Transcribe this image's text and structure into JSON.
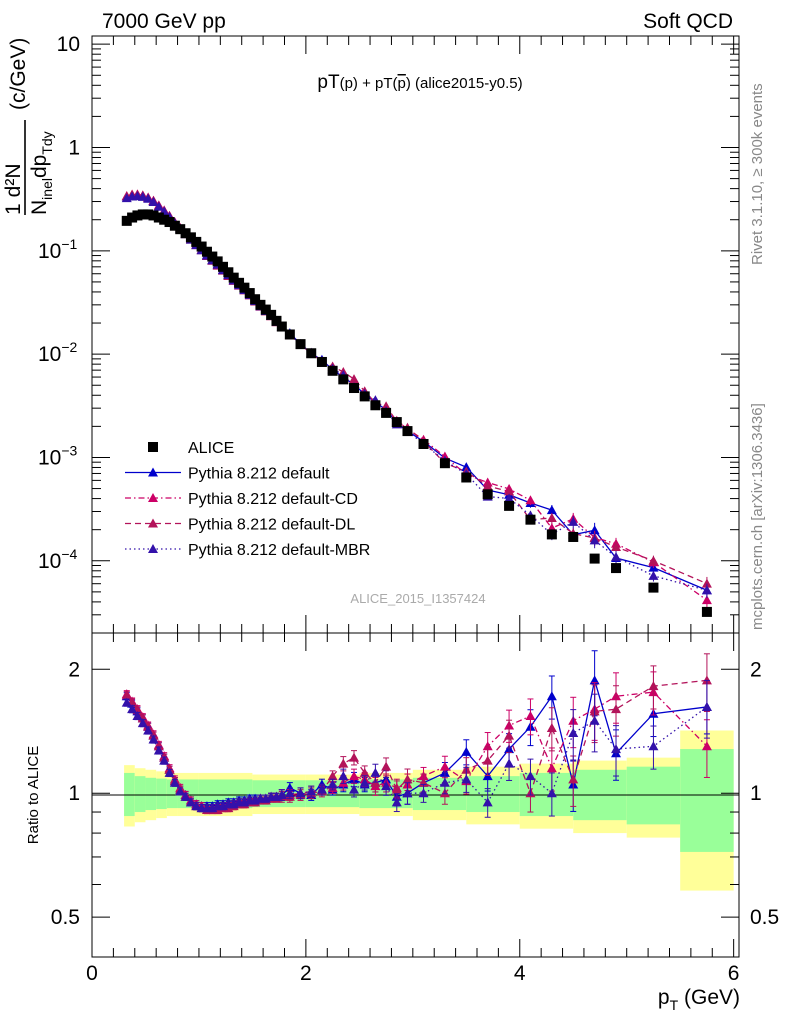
{
  "header": {
    "left": "7000 GeV pp",
    "right": "Soft QCD"
  },
  "side_text": {
    "rivet": "Rivet 3.1.10, ≥ 300k events",
    "mcplots": "mcplots.cern.ch [arXiv:1306.3436]"
  },
  "chart_data": [
    {
      "type": "scatter",
      "title_parts": {
        "a": "pT",
        "b": "(p)",
        "c": " + pT(",
        "d": "p",
        "e": ")",
        "f": " (alice2015-y0.5)"
      },
      "watermark": "ALICE_2015_I1357424",
      "ylabel": {
        "num": "1",
        "main": "d²N",
        "den1": "N",
        "den_sub1": "inel",
        "den2": "dp",
        "den_sub2": "Tdy",
        "unit": "(c/GeV)"
      },
      "yscale": "log",
      "ylim": [
        2e-05,
        12
      ],
      "xlim": [
        0,
        6.05
      ],
      "yticks": [
        {
          "v": 10,
          "base": "10",
          "exp": ""
        },
        {
          "v": 1,
          "base": "1",
          "exp": ""
        },
        {
          "v": 0.1,
          "base": "10",
          "exp": "−1"
        },
        {
          "v": 0.01,
          "base": "10",
          "exp": "−2"
        },
        {
          "v": 0.001,
          "base": "10",
          "exp": "−3"
        },
        {
          "v": 0.0001,
          "base": "10",
          "exp": "−4"
        }
      ],
      "legend_placement": "lower-left",
      "legend": [
        {
          "name": "ALICE",
          "style": "data"
        },
        {
          "name": "Pythia 8.212 default",
          "style": "solid"
        },
        {
          "name": "Pythia 8.212 default-CD",
          "style": "dashdot"
        },
        {
          "name": "Pythia 8.212 default-DL",
          "style": "dash"
        },
        {
          "name": "Pythia 8.212 default-MBR",
          "style": "dot"
        }
      ],
      "x": [
        0.325,
        0.375,
        0.425,
        0.475,
        0.525,
        0.575,
        0.625,
        0.675,
        0.725,
        0.775,
        0.825,
        0.875,
        0.925,
        0.975,
        1.025,
        1.075,
        1.125,
        1.175,
        1.225,
        1.275,
        1.325,
        1.375,
        1.425,
        1.475,
        1.525,
        1.575,
        1.625,
        1.675,
        1.725,
        1.775,
        1.85,
        1.95,
        2.05,
        2.15,
        2.25,
        2.35,
        2.45,
        2.55,
        2.65,
        2.75,
        2.85,
        2.95,
        3.1,
        3.3,
        3.5,
        3.7,
        3.9,
        4.1,
        4.3,
        4.5,
        4.7,
        4.9,
        5.25,
        5.75
      ],
      "alice": [
        0.195,
        0.21,
        0.22,
        0.225,
        0.225,
        0.22,
        0.21,
        0.2,
        0.19,
        0.175,
        0.162,
        0.148,
        0.135,
        0.122,
        0.11,
        0.098,
        0.088,
        0.079,
        0.07,
        0.062,
        0.055,
        0.049,
        0.044,
        0.039,
        0.034,
        0.03,
        0.027,
        0.024,
        0.021,
        0.0185,
        0.0155,
        0.0125,
        0.0102,
        0.0084,
        0.0069,
        0.0057,
        0.0047,
        0.0039,
        0.0032,
        0.0027,
        0.0022,
        0.0018,
        0.00135,
        0.00088,
        0.00064,
        0.00044,
        0.00034,
        0.00025,
        0.00018,
        0.00017,
        0.000105,
        8.5e-05,
        5.5e-05,
        3.2e-05
      ],
      "series": [
        {
          "name": "Pythia 8.212 default",
          "color": "#0000cc",
          "dash": "",
          "ratio": [
            1.72,
            1.65,
            1.58,
            1.52,
            1.45,
            1.38,
            1.3,
            1.22,
            1.14,
            1.07,
            1.02,
            0.99,
            0.96,
            0.94,
            0.93,
            0.93,
            0.93,
            0.94,
            0.94,
            0.95,
            0.95,
            0.96,
            0.96,
            0.97,
            0.97,
            0.97,
            0.97,
            0.98,
            0.98,
            0.99,
            1.03,
            1.0,
            0.99,
            1.05,
            1.02,
            1.05,
            1.08,
            1.05,
            1.06,
            1.08,
            0.98,
            1.0,
            1.06,
            1.12,
            1.26,
            1.1,
            1.28,
            1.45,
            1.72,
            1.05,
            1.88,
            1.25,
            1.56,
            1.62
          ],
          "rerr": [
            0.02,
            0.02,
            0.02,
            0.02,
            0.02,
            0.02,
            0.02,
            0.02,
            0.02,
            0.02,
            0.02,
            0.02,
            0.02,
            0.02,
            0.02,
            0.02,
            0.02,
            0.02,
            0.02,
            0.02,
            0.02,
            0.02,
            0.02,
            0.02,
            0.02,
            0.02,
            0.02,
            0.02,
            0.02,
            0.03,
            0.03,
            0.03,
            0.03,
            0.03,
            0.03,
            0.04,
            0.04,
            0.04,
            0.05,
            0.05,
            0.05,
            0.06,
            0.05,
            0.06,
            0.07,
            0.08,
            0.09,
            0.1,
            0.12,
            0.14,
            0.18,
            0.14,
            0.12,
            0.14
          ]
        },
        {
          "name": "Pythia 8.212 default-CD",
          "color": "#cc0066",
          "dash": "6,3,1.5,3",
          "ratio": [
            1.74,
            1.67,
            1.6,
            1.53,
            1.46,
            1.39,
            1.31,
            1.23,
            1.15,
            1.08,
            1.03,
            0.99,
            0.96,
            0.94,
            0.93,
            0.92,
            0.92,
            0.92,
            0.93,
            0.93,
            0.94,
            0.95,
            0.95,
            0.96,
            0.96,
            0.97,
            0.97,
            0.98,
            0.98,
            0.99,
            0.99,
            1.0,
            1.01,
            1.02,
            1.03,
            1.06,
            1.1,
            1.08,
            1.04,
            1.06,
            1.03,
            1.05,
            1.1,
            1.16,
            1.07,
            1.3,
            1.46,
            1.54,
            1.15,
            1.5,
            1.6,
            1.72,
            1.76,
            1.3
          ],
          "rerr": [
            0.02,
            0.02,
            0.02,
            0.02,
            0.02,
            0.02,
            0.02,
            0.02,
            0.02,
            0.02,
            0.02,
            0.02,
            0.02,
            0.02,
            0.02,
            0.02,
            0.02,
            0.02,
            0.02,
            0.02,
            0.02,
            0.02,
            0.02,
            0.02,
            0.02,
            0.02,
            0.02,
            0.02,
            0.02,
            0.03,
            0.03,
            0.03,
            0.03,
            0.03,
            0.03,
            0.04,
            0.04,
            0.04,
            0.05,
            0.05,
            0.05,
            0.06,
            0.05,
            0.06,
            0.07,
            0.08,
            0.09,
            0.1,
            0.12,
            0.14,
            0.16,
            0.14,
            0.12,
            0.16
          ]
        },
        {
          "name": "Pythia 8.212 default-DL",
          "color": "#b3135a",
          "dash": "6,4",
          "ratio": [
            1.73,
            1.66,
            1.59,
            1.52,
            1.45,
            1.38,
            1.3,
            1.22,
            1.14,
            1.07,
            1.02,
            0.98,
            0.95,
            0.93,
            0.92,
            0.91,
            0.91,
            0.91,
            0.92,
            0.92,
            0.93,
            0.94,
            0.94,
            0.95,
            0.95,
            0.96,
            0.96,
            0.97,
            0.97,
            0.98,
            0.98,
            0.99,
            1.0,
            1.01,
            1.1,
            1.18,
            1.22,
            1.12,
            1.06,
            1.16,
            1.02,
            1.08,
            1.06,
            1.0,
            1.14,
            1.2,
            1.38,
            1.0,
            1.44,
            1.08,
            1.58,
            1.6,
            1.82,
            1.88
          ],
          "rerr": [
            0.02,
            0.02,
            0.02,
            0.02,
            0.02,
            0.02,
            0.02,
            0.02,
            0.02,
            0.02,
            0.02,
            0.02,
            0.02,
            0.02,
            0.02,
            0.02,
            0.02,
            0.02,
            0.02,
            0.02,
            0.02,
            0.02,
            0.02,
            0.02,
            0.02,
            0.02,
            0.02,
            0.02,
            0.02,
            0.03,
            0.03,
            0.03,
            0.03,
            0.03,
            0.03,
            0.04,
            0.04,
            0.04,
            0.05,
            0.05,
            0.05,
            0.06,
            0.05,
            0.06,
            0.07,
            0.08,
            0.09,
            0.1,
            0.12,
            0.14,
            0.16,
            0.14,
            0.12,
            0.16
          ]
        },
        {
          "name": "Pythia 8.212 default-MBR",
          "color": "#3311aa",
          "dash": "1.5,3",
          "ratio": [
            1.66,
            1.6,
            1.54,
            1.48,
            1.42,
            1.35,
            1.27,
            1.2,
            1.12,
            1.06,
            1.01,
            0.98,
            0.95,
            0.93,
            0.92,
            0.92,
            0.92,
            0.93,
            0.93,
            0.94,
            0.94,
            0.95,
            0.95,
            0.96,
            0.96,
            0.97,
            0.97,
            0.98,
            0.98,
            0.99,
            1.0,
            1.0,
            1.01,
            1.02,
            1.05,
            1.1,
            1.02,
            1.06,
            1.12,
            1.04,
            0.95,
            1.0,
            1.0,
            1.06,
            1.08,
            0.95,
            1.18,
            1.1,
            1.0,
            1.4,
            1.5,
            1.28,
            1.3,
            1.62
          ],
          "rerr": [
            0.02,
            0.02,
            0.02,
            0.02,
            0.02,
            0.02,
            0.02,
            0.02,
            0.02,
            0.02,
            0.02,
            0.02,
            0.02,
            0.02,
            0.02,
            0.02,
            0.02,
            0.02,
            0.02,
            0.02,
            0.02,
            0.02,
            0.02,
            0.02,
            0.02,
            0.02,
            0.02,
            0.02,
            0.02,
            0.03,
            0.03,
            0.03,
            0.03,
            0.03,
            0.03,
            0.04,
            0.04,
            0.04,
            0.05,
            0.05,
            0.05,
            0.06,
            0.05,
            0.06,
            0.07,
            0.08,
            0.09,
            0.1,
            0.12,
            0.14,
            0.16,
            0.14,
            0.12,
            0.16
          ]
        }
      ]
    },
    {
      "type": "scatter",
      "role": "ratio",
      "ylabel": "Ratio to ALICE",
      "ylim": [
        0.4,
        2.45
      ],
      "yscale": "log",
      "xlim": [
        0,
        6.05
      ],
      "yticks": [
        {
          "v": 2,
          "label": "2"
        },
        {
          "v": 1,
          "label": "1"
        },
        {
          "v": 0.5,
          "label": "0.5"
        }
      ],
      "xticks": [
        {
          "v": 0,
          "label": "0"
        },
        {
          "v": 2,
          "label": "2"
        },
        {
          "v": 4,
          "label": "4"
        },
        {
          "v": 6,
          "label": "6"
        }
      ],
      "xlabel": {
        "main": "p",
        "sub": "T",
        "unit": " (GeV)"
      },
      "band_colors": {
        "stat": "#99ff99",
        "total": "#ffff99"
      },
      "band_edges": [
        0.3,
        0.4,
        0.5,
        0.6,
        0.7,
        0.8,
        1.0,
        1.5,
        2.0,
        2.5,
        3.0,
        3.5,
        4.0,
        4.5,
        5.0,
        5.5,
        6.0
      ],
      "band_stat": [
        0.12,
        0.1,
        0.09,
        0.085,
        0.08,
        0.08,
        0.08,
        0.075,
        0.075,
        0.08,
        0.09,
        0.1,
        0.12,
        0.14,
        0.16,
        0.28
      ],
      "band_total": [
        0.17,
        0.15,
        0.14,
        0.13,
        0.12,
        0.12,
        0.12,
        0.11,
        0.11,
        0.12,
        0.14,
        0.16,
        0.18,
        0.2,
        0.22,
        0.42
      ]
    }
  ]
}
